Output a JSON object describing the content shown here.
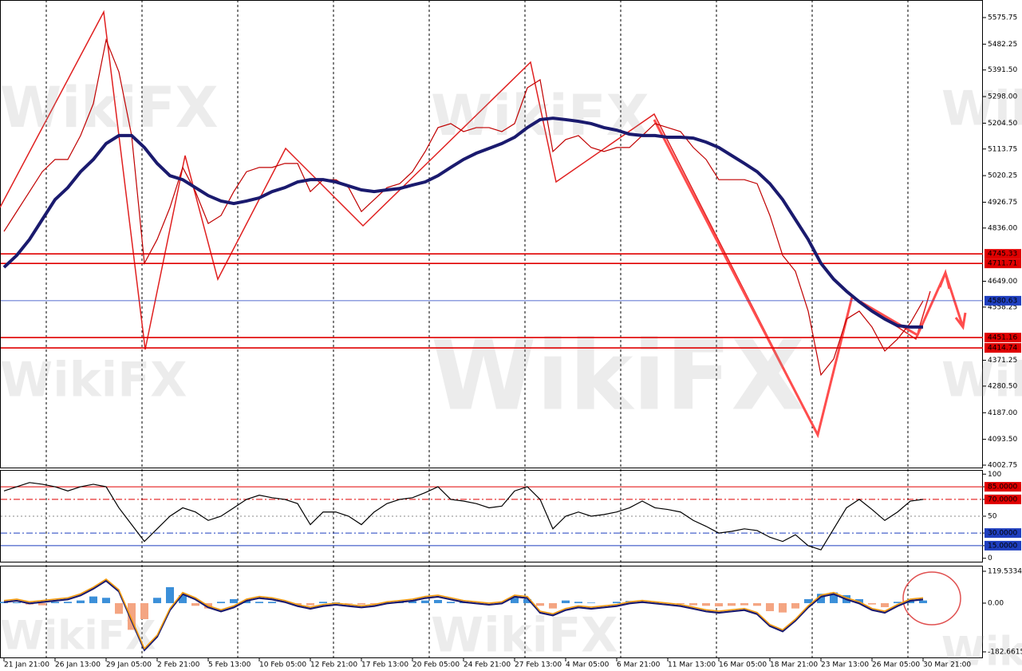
{
  "chart_data": [
    {
      "type": "line",
      "watermark": "WikiFX",
      "categories": [
        "21 Jan 21:00",
        null,
        null,
        null,
        "26 Jan 13:00",
        null,
        null,
        null,
        "29 Jan 05:00",
        null,
        null,
        null,
        "2 Feb 21:00",
        null,
        null,
        null,
        "5 Feb 13:00",
        null,
        null,
        null,
        "10 Feb 05:00",
        null,
        null,
        null,
        "12 Feb 21:00",
        null,
        null,
        null,
        "17 Feb 13:00",
        null,
        null,
        null,
        "20 Feb 05:00",
        null,
        null,
        null,
        "24 Feb 21:00",
        null,
        null,
        null,
        "27 Feb 13:00",
        null,
        null,
        null,
        "4 Mar 05:00",
        null,
        null,
        null,
        "6 Mar 21:00",
        null,
        null,
        null,
        "11 Mar 13:00",
        null,
        null,
        null,
        "16 Mar 05:00",
        null,
        null,
        null,
        "18 Mar 21:00",
        null,
        null,
        null,
        "23 Mar 13:00",
        null,
        null,
        null,
        "26 Mar 05:00",
        null,
        null,
        null,
        "30 Mar 21:00"
      ],
      "series": [
        {
          "color": "#c00000",
          "values": [
            4824,
            4894,
            4964,
            5034,
            5077,
            5077,
            5161,
            5273,
            5497,
            5385,
            5161,
            4712,
            4796,
            4908,
            5049,
            4964,
            4852,
            4880,
            4964,
            5034,
            5049,
            5049,
            5063,
            5063,
            4964,
            5006,
            5006,
            4978,
            4894,
            4936,
            4978,
            4992,
            5034,
            5105,
            5189,
            5203,
            5175,
            5189,
            5189,
            5175,
            5203,
            5329,
            5357,
            5105,
            5147,
            5161,
            5119,
            5105,
            5119,
            5119,
            5161,
            5203,
            5189,
            5175,
            5119,
            5077,
            5006,
            5006,
            5006,
            4992,
            4880,
            4740,
            4684,
            4544,
            4320,
            4376,
            4516,
            4544,
            4488,
            4404,
            4446,
            4502,
            4580
          ]
        },
        {
          "color": "#1a1a6e",
          "values": [
            4698,
            4740,
            4796,
            4866,
            4936,
            4978,
            5034,
            5077,
            5133,
            5161,
            5161,
            5119,
            5063,
            5020,
            5006,
            4978,
            4950,
            4931,
            4922,
            4931,
            4942,
            4964,
            4978,
            4998,
            5006,
            5006,
            4998,
            4984,
            4970,
            4964,
            4970,
            4975,
            4987,
            4998,
            5020,
            5049,
            5077,
            5099,
            5116,
            5133,
            5155,
            5189,
            5217,
            5222,
            5217,
            5211,
            5203,
            5189,
            5180,
            5166,
            5161,
            5161,
            5155,
            5155,
            5152,
            5138,
            5119,
            5091,
            5063,
            5034,
            4992,
            4936,
            4866,
            4796,
            4712,
            4656,
            4614,
            4577,
            4544,
            4516,
            4493,
            4488,
            4488
          ]
        }
      ],
      "ylim": [
        3991.5,
        5637.4
      ],
      "yticks": [
        5575.75,
        5482.25,
        {
          "value": 5391.5,
          "label": "5391.50"
        },
        {
          "value": 5298.0,
          "label": "5298.00"
        },
        {
          "value": 5204.5,
          "label": "5204.50"
        },
        5113.75,
        5020.25,
        4926.75,
        {
          "value": 4836.0,
          "label": "4836.00"
        },
        {
          "value": 4649.0,
          "label": "4649.00"
        },
        4558.25,
        4371.25,
        {
          "value": 4280.5,
          "label": "4280.50"
        },
        {
          "value": 4187.0,
          "label": "4187.00"
        },
        {
          "value": 4093.5,
          "label": "4093.50"
        },
        4002.75
      ],
      "levels": [
        {
          "value": 4745.33,
          "color": "#e00000"
        },
        {
          "value": 4711.71,
          "color": "#e00000"
        },
        {
          "value": 4580.63,
          "color": "#1f3fbf"
        },
        {
          "value": 4451.16,
          "color": "#e00000"
        },
        {
          "value": 4414.74,
          "color": "#e00000"
        }
      ]
    },
    {
      "type": "line",
      "color": "#000000",
      "values": [
        80,
        85,
        90,
        88,
        85,
        80,
        85,
        88,
        85,
        60,
        40,
        20,
        35,
        50,
        60,
        55,
        45,
        50,
        60,
        70,
        75,
        72,
        70,
        65,
        40,
        55,
        55,
        50,
        40,
        55,
        65,
        70,
        72,
        78,
        85,
        70,
        68,
        65,
        60,
        62,
        80,
        85,
        70,
        35,
        50,
        55,
        50,
        52,
        55,
        60,
        68,
        60,
        58,
        55,
        45,
        38,
        30,
        32,
        35,
        33,
        25,
        20,
        28,
        15,
        10,
        35,
        60,
        70,
        58,
        45,
        55,
        68,
        70
      ],
      "ylim": [
        -5,
        105
      ],
      "yticks": [
        100,
        {
          "value": 85,
          "label": "85.0000"
        },
        {
          "value": 70,
          "label": "70.0000"
        },
        50,
        {
          "value": 30,
          "label": "30.0000"
        },
        {
          "value": 15,
          "label": "15.0000"
        },
        0
      ],
      "ytick_colors": [
        null,
        "#e00000",
        "#e00000",
        "#888888",
        "#1f3fbf",
        "#1f3fbf",
        null
      ]
    },
    {
      "type": "bar",
      "color": "#3b8fd9",
      "negative_color": "#f4a582",
      "values": [
        5,
        3,
        -5,
        -8,
        5,
        5,
        10,
        25,
        20,
        -40,
        -100,
        -60,
        20,
        60,
        30,
        -10,
        -20,
        5,
        15,
        10,
        5,
        5,
        0,
        -5,
        -8,
        5,
        3,
        -2,
        -5,
        -3,
        3,
        5,
        8,
        10,
        12,
        5,
        3,
        0,
        -2,
        0,
        20,
        15,
        -10,
        -20,
        10,
        5,
        2,
        0,
        5,
        8,
        3,
        2,
        0,
        -3,
        -8,
        -10,
        -12,
        -10,
        -8,
        -10,
        -30,
        -35,
        -20,
        15,
        35,
        40,
        30,
        15,
        -5,
        -15,
        5,
        12,
        10
      ],
      "line": {
        "color": "#f39c12",
        "values": [
          10,
          15,
          5,
          10,
          15,
          20,
          35,
          60,
          90,
          50,
          -60,
          -170,
          -120,
          -20,
          40,
          20,
          -10,
          -25,
          -10,
          15,
          25,
          20,
          10,
          -5,
          -15,
          -5,
          0,
          -5,
          -10,
          -5,
          5,
          10,
          15,
          25,
          30,
          20,
          10,
          5,
          0,
          5,
          30,
          25,
          -30,
          -40,
          -20,
          -10,
          -15,
          -10,
          -5,
          5,
          10,
          5,
          0,
          -5,
          -15,
          -25,
          -30,
          -25,
          -20,
          -35,
          -80,
          -100,
          -60,
          -10,
          30,
          40,
          20,
          5,
          -20,
          -30,
          -5,
          15,
          20
        ]
      },
      "ylim": [
        -206.6,
        140.5
      ],
      "yticks": [
        119.5334,
        {
          "value": 0,
          "label": "0.00"
        },
        -182.6615
      ]
    }
  ]
}
